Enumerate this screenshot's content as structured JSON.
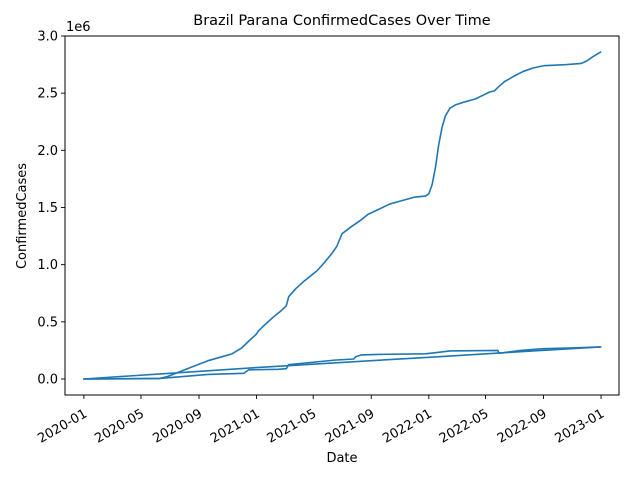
{
  "chart_data": {
    "type": "line",
    "title": "Brazil Parana ConfirmedCases Over Time",
    "xlabel": "Date",
    "ylabel": "ConfirmedCases",
    "y_offset_text": "1e6",
    "ylim": [
      -140000,
      3000000
    ],
    "xlim": [
      "2019-11-22",
      "2023-02-08"
    ],
    "grid": false,
    "line_color": "#1f77b4",
    "x_ticks": [
      "2020-01",
      "2020-05",
      "2020-09",
      "2021-01",
      "2021-05",
      "2021-09",
      "2022-01",
      "2022-05",
      "2022-09",
      "2023-01"
    ],
    "y_ticks": [
      "0.0",
      "0.5",
      "1.0",
      "1.5",
      "2.0",
      "2.5",
      "3.0"
    ],
    "series": [
      {
        "x": [
          "2020-01-01",
          "2020-03-15",
          "2020-06-10",
          "2020-06-25",
          "2020-07-20",
          "2020-08-20",
          "2020-09-20",
          "2020-10-20",
          "2020-11-10",
          "2020-11-30",
          "2020-12-15",
          "2020-12-31",
          "2021-01-05",
          "2021-01-20",
          "2021-02-05",
          "2021-02-20",
          "2021-03-05",
          "2021-03-10",
          "2021-03-25",
          "2021-04-10",
          "2021-04-25",
          "2021-05-10",
          "2021-05-25",
          "2021-06-10",
          "2021-06-20",
          "2021-07-01",
          "2021-07-20",
          "2021-08-10",
          "2021-08-25",
          "2021-09-15",
          "2021-10-10",
          "2021-11-05",
          "2021-12-01",
          "2021-12-25",
          "2022-01-01",
          "2022-01-08",
          "2022-01-15",
          "2022-01-22",
          "2022-01-29",
          "2022-02-05",
          "2022-02-15",
          "2022-02-28",
          "2022-03-15",
          "2022-04-10",
          "2022-04-25",
          "2022-05-10",
          "2022-05-20",
          "2022-05-25",
          "2022-05-30",
          "2022-06-10",
          "2022-07-01",
          "2022-07-20",
          "2022-08-10",
          "2022-09-01",
          "2022-09-25",
          "2022-10-20",
          "2022-11-20",
          "2022-12-01",
          "2022-12-15",
          "2022-12-31"
        ],
        "y": [
          0,
          1000,
          5000,
          20000,
          60000,
          110000,
          160000,
          195000,
          220000,
          270000,
          330000,
          390000,
          420000,
          480000,
          540000,
          590000,
          640000,
          720000,
          790000,
          850000,
          900000,
          950000,
          1020000,
          1100000,
          1160000,
          1270000,
          1330000,
          1390000,
          1440000,
          1480000,
          1530000,
          1560000,
          1590000,
          1600000,
          1620000,
          1700000,
          1850000,
          2050000,
          2200000,
          2300000,
          2370000,
          2400000,
          2420000,
          2450000,
          2480000,
          2510000,
          2520000,
          2540000,
          2560000,
          2600000,
          2650000,
          2690000,
          2720000,
          2740000,
          2745000,
          2750000,
          2760000,
          2780000,
          2820000,
          2860000
        ]
      },
      {
        "x": [
          "2020-01-01",
          "2020-06-10",
          "2020-09-20",
          "2020-12-05",
          "2020-12-15",
          "2021-02-15",
          "2021-03-05",
          "2021-03-10",
          "2021-06-15",
          "2021-07-26",
          "2021-07-30",
          "2021-08-10",
          "2021-09-15",
          "2021-12-25",
          "2022-01-15",
          "2022-02-15",
          "2022-05-27",
          "2022-05-30",
          "2022-07-15",
          "2022-09-01",
          "2022-11-01",
          "2022-12-31"
        ],
        "y": [
          0,
          5000,
          40000,
          50000,
          80000,
          85000,
          90000,
          125000,
          165000,
          175000,
          195000,
          210000,
          215000,
          220000,
          230000,
          245000,
          250000,
          225000,
          250000,
          265000,
          272000,
          280000
        ]
      },
      {
        "x": [
          "2020-01-01",
          "2020-07-01",
          "2021-01-01",
          "2021-07-01",
          "2022-01-01",
          "2022-07-01",
          "2022-12-31"
        ],
        "y": [
          0,
          50000,
          100000,
          145000,
          190000,
          235000,
          280000
        ]
      }
    ]
  }
}
